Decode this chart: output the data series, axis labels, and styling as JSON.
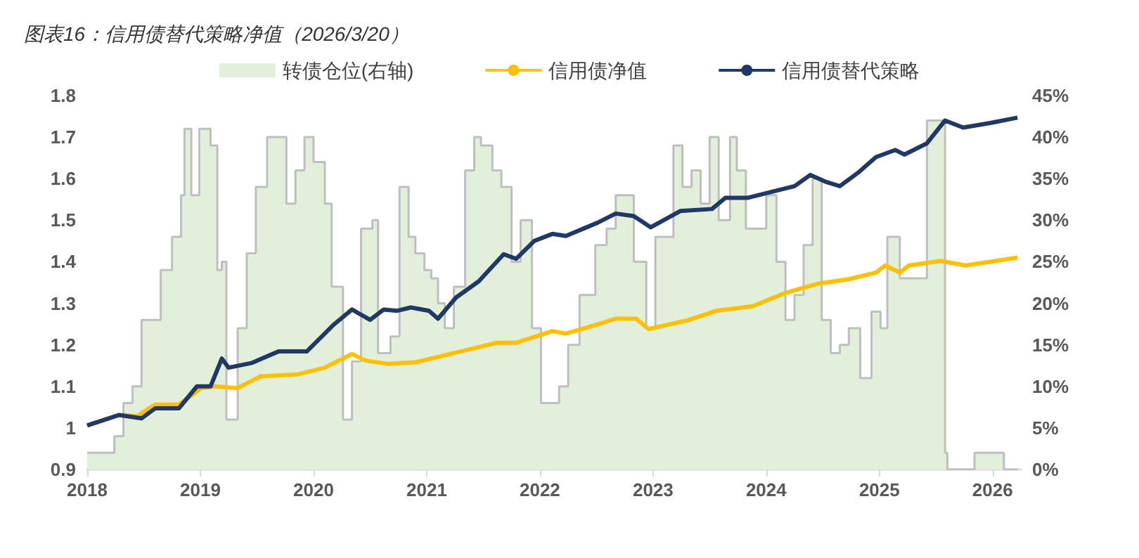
{
  "chart_data": {
    "type": "line",
    "title": "图表16：信用债替代策略净值（2026/3/20）",
    "xlim": [
      2018,
      2026.25
    ],
    "xticks": [
      2018,
      2019,
      2020,
      2021,
      2022,
      2023,
      2024,
      2025,
      2026
    ],
    "ylim": [
      0.9,
      1.8
    ],
    "yticks": [
      0.9,
      1,
      1.1,
      1.2,
      1.3,
      1.4,
      1.5,
      1.6,
      1.7,
      1.8
    ],
    "y2lim": [
      0,
      45
    ],
    "y2ticks": [
      {
        "value": 0,
        "label": "0%"
      },
      {
        "value": 5,
        "label": "5%"
      },
      {
        "value": 10,
        "label": "10%"
      },
      {
        "value": 15,
        "label": "15%"
      },
      {
        "value": 20,
        "label": "20%"
      },
      {
        "value": 25,
        "label": "25%"
      },
      {
        "value": 30,
        "label": "30%"
      },
      {
        "value": 35,
        "label": "35%"
      },
      {
        "value": 40,
        "label": "40%"
      },
      {
        "value": 45,
        "label": "45%"
      }
    ],
    "legend": "top",
    "grid": false,
    "series": [
      {
        "name": "转债仓位(右轴)",
        "type": "area",
        "axis": "y2",
        "color": "#e2efda",
        "x": [
          2018.0,
          2018.24,
          2018.32,
          2018.4,
          2018.48,
          2018.65,
          2018.75,
          2018.83,
          2018.86,
          2018.92,
          2018.99,
          2019.09,
          2019.15,
          2019.19,
          2019.23,
          2019.33,
          2019.41,
          2019.49,
          2019.59,
          2019.76,
          2019.84,
          2019.92,
          2020.0,
          2020.1,
          2020.16,
          2020.26,
          2020.34,
          2020.42,
          2020.52,
          2020.57,
          2020.68,
          2020.76,
          2020.84,
          2020.9,
          2020.98,
          2021.04,
          2021.1,
          2021.16,
          2021.24,
          2021.34,
          2021.42,
          2021.48,
          2021.58,
          2021.66,
          2021.75,
          2021.83,
          2021.93,
          2022.01,
          2022.17,
          2022.25,
          2022.35,
          2022.49,
          2022.59,
          2022.67,
          2022.83,
          2022.94,
          2023.02,
          2023.18,
          2023.26,
          2023.34,
          2023.42,
          2023.5,
          2023.58,
          2023.68,
          2023.74,
          2023.82,
          2024.0,
          2024.09,
          2024.17,
          2024.25,
          2024.33,
          2024.41,
          2024.49,
          2024.57,
          2024.65,
          2024.73,
          2024.83,
          2024.93,
          2025.01,
          2025.07,
          2025.18,
          2025.42,
          2025.58,
          2025.6,
          2025.84,
          2026.1,
          2026.22
        ],
        "values": [
          2,
          4,
          8,
          10,
          18,
          24,
          28,
          33,
          41,
          33,
          41,
          39,
          24,
          25,
          6,
          17,
          26,
          34,
          40,
          32,
          36,
          40,
          37,
          32,
          22,
          6,
          13,
          29,
          30,
          14,
          16,
          34,
          28,
          26,
          24,
          23,
          20,
          17,
          22,
          36,
          40,
          39,
          36,
          34,
          25,
          30,
          17,
          8,
          10,
          15,
          21,
          27,
          29,
          33,
          25,
          17,
          28,
          39,
          34,
          36,
          32,
          40,
          30,
          40,
          36,
          29,
          33,
          25,
          18,
          21,
          27,
          35,
          18,
          14,
          15,
          17,
          11,
          19,
          17,
          28,
          23,
          42,
          2,
          0,
          2,
          0,
          0
        ]
      },
      {
        "name": "信用债净值",
        "color": "#ffc000",
        "x": [
          2018.0,
          2018.28,
          2018.44,
          2018.6,
          2018.81,
          2019.01,
          2019.13,
          2019.33,
          2019.53,
          2019.86,
          2020.1,
          2020.34,
          2020.46,
          2020.66,
          2020.9,
          2021.3,
          2021.62,
          2021.79,
          2022.11,
          2022.23,
          2022.51,
          2022.67,
          2022.85,
          2022.96,
          2023.32,
          2023.56,
          2023.88,
          2024.17,
          2024.45,
          2024.73,
          2024.97,
          2025.05,
          2025.18,
          2025.26,
          2025.54,
          2025.76,
          2025.98,
          2026.22
        ],
        "values": [
          1.006,
          1.031,
          1.028,
          1.056,
          1.056,
          1.096,
          1.1,
          1.096,
          1.124,
          1.129,
          1.145,
          1.178,
          1.162,
          1.154,
          1.158,
          1.184,
          1.205,
          1.205,
          1.233,
          1.227,
          1.249,
          1.263,
          1.263,
          1.238,
          1.26,
          1.282,
          1.293,
          1.325,
          1.347,
          1.358,
          1.374,
          1.391,
          1.374,
          1.391,
          1.402,
          1.391,
          1.4,
          1.41
        ]
      },
      {
        "name": "信用债替代策略",
        "color": "#1f3864",
        "x": [
          2018.0,
          2018.28,
          2018.48,
          2018.6,
          2018.81,
          2018.97,
          2019.09,
          2019.19,
          2019.25,
          2019.45,
          2019.69,
          2019.94,
          2020.18,
          2020.34,
          2020.5,
          2020.62,
          2020.74,
          2020.86,
          2021.02,
          2021.1,
          2021.26,
          2021.46,
          2021.68,
          2021.79,
          2021.95,
          2022.11,
          2022.23,
          2022.51,
          2022.67,
          2022.83,
          2022.98,
          2023.24,
          2023.52,
          2023.64,
          2023.84,
          2024.0,
          2024.25,
          2024.39,
          2024.53,
          2024.65,
          2024.81,
          2024.97,
          2025.14,
          2025.22,
          2025.42,
          2025.58,
          2025.74,
          2025.98,
          2026.22
        ],
        "values": [
          1.006,
          1.031,
          1.023,
          1.047,
          1.047,
          1.1,
          1.1,
          1.167,
          1.145,
          1.156,
          1.184,
          1.184,
          1.249,
          1.285,
          1.26,
          1.285,
          1.282,
          1.29,
          1.282,
          1.263,
          1.314,
          1.353,
          1.418,
          1.407,
          1.45,
          1.467,
          1.462,
          1.494,
          1.516,
          1.51,
          1.483,
          1.522,
          1.527,
          1.554,
          1.554,
          1.565,
          1.582,
          1.609,
          1.592,
          1.582,
          1.614,
          1.652,
          1.669,
          1.658,
          1.685,
          1.74,
          1.723,
          1.734,
          1.747
        ]
      }
    ]
  }
}
